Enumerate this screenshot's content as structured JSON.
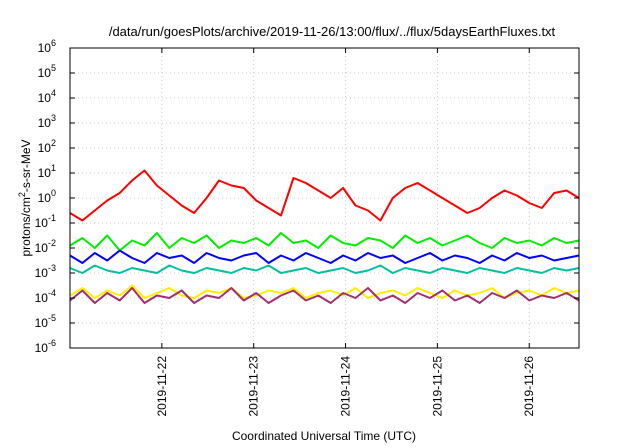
{
  "chart_data": {
    "type": "line",
    "title": "/data/run/goesPlots/archive/2019-11-26/13:00/flux/../flux/5daysEarthFluxes.txt",
    "xlabel": "Coordinated Universal Time (UTC)",
    "ylabel": "protons/cm²-s-sr-MeV",
    "ylabel_base": "protons/cm",
    "ylabel_sup": "2",
    "ylabel_rest": "-s-sr-MeV",
    "y_scale": "log",
    "ylim_exp": [
      -6,
      6
    ],
    "y_tick_exponents": [
      6,
      5,
      4,
      3,
      2,
      1,
      0,
      -1,
      -2,
      -3,
      -4,
      -5,
      -6
    ],
    "x_range_days": [
      "2019-11-21T00:00",
      "2019-11-26T13:00"
    ],
    "x_ticks": [
      "2019-11-22",
      "2019-11-23",
      "2019-11-24",
      "2019-11-25",
      "2019-11-26"
    ],
    "grid": true,
    "series": [
      {
        "color": "#ff0000",
        "log10_values": [
          -0.6,
          -0.9,
          -0.5,
          -0.1,
          0.2,
          0.7,
          1.1,
          0.5,
          0.1,
          -0.3,
          -0.6,
          0.0,
          0.7,
          0.5,
          0.4,
          -0.1,
          -0.4,
          -0.7,
          0.8,
          0.6,
          0.3,
          0.0,
          0.4,
          -0.3,
          -0.5,
          -0.9,
          0.0,
          0.4,
          0.6,
          0.3,
          0.0,
          -0.3,
          -0.6,
          -0.4,
          0.0,
          0.3,
          0.1,
          -0.2,
          -0.4,
          0.2,
          0.3,
          0.0
        ]
      },
      {
        "color": "#00ee00",
        "log10_values": [
          -1.9,
          -1.6,
          -2.0,
          -1.5,
          -2.1,
          -1.7,
          -1.9,
          -1.4,
          -2.0,
          -1.6,
          -1.8,
          -1.5,
          -2.0,
          -1.7,
          -1.8,
          -1.6,
          -1.9,
          -1.4,
          -1.8,
          -1.7,
          -2.0,
          -1.5,
          -1.8,
          -1.9,
          -1.6,
          -1.7,
          -2.0,
          -1.5,
          -1.8,
          -1.6,
          -1.9,
          -1.7,
          -1.5,
          -1.8,
          -2.0,
          -1.6,
          -1.8,
          -1.7,
          -1.9,
          -1.6,
          -1.8,
          -1.7
        ]
      },
      {
        "color": "#0000ff",
        "log10_values": [
          -2.3,
          -2.6,
          -2.2,
          -2.5,
          -2.1,
          -2.4,
          -2.6,
          -2.2,
          -2.4,
          -2.3,
          -2.6,
          -2.2,
          -2.4,
          -2.5,
          -2.3,
          -2.2,
          -2.6,
          -2.3,
          -2.5,
          -2.2,
          -2.4,
          -2.6,
          -2.3,
          -2.5,
          -2.2,
          -2.4,
          -2.3,
          -2.6,
          -2.4,
          -2.2,
          -2.5,
          -2.3,
          -2.4,
          -2.6,
          -2.3,
          -2.5,
          -2.2,
          -2.4,
          -2.3,
          -2.5,
          -2.4,
          -2.3
        ]
      },
      {
        "color": "#00c0a0",
        "log10_values": [
          -2.8,
          -3.0,
          -2.7,
          -2.9,
          -3.0,
          -2.8,
          -2.9,
          -3.0,
          -2.7,
          -2.9,
          -3.0,
          -2.8,
          -2.9,
          -3.0,
          -2.8,
          -2.9,
          -2.7,
          -3.0,
          -2.9,
          -2.8,
          -3.0,
          -2.9,
          -2.8,
          -3.0,
          -2.9,
          -2.7,
          -3.0,
          -2.8,
          -2.9,
          -3.0,
          -2.8,
          -2.9,
          -3.0,
          -2.8,
          -2.9,
          -3.0,
          -2.8,
          -2.9,
          -3.0,
          -2.8,
          -2.9,
          -2.8
        ]
      },
      {
        "color": "#ffee00",
        "log10_values": [
          -3.9,
          -3.6,
          -4.0,
          -3.7,
          -3.9,
          -3.5,
          -4.0,
          -3.8,
          -3.6,
          -3.9,
          -4.0,
          -3.7,
          -3.8,
          -3.6,
          -4.0,
          -3.9,
          -3.7,
          -3.8,
          -3.6,
          -4.0,
          -3.8,
          -3.7,
          -3.9,
          -3.6,
          -4.0,
          -3.8,
          -3.7,
          -3.9,
          -3.6,
          -3.8,
          -4.0,
          -3.7,
          -3.9,
          -3.8,
          -3.6,
          -4.0,
          -3.8,
          -3.7,
          -3.9,
          -3.6,
          -3.8,
          -3.7
        ]
      },
      {
        "color": "#a0306e",
        "log10_values": [
          -4.1,
          -3.7,
          -4.2,
          -3.8,
          -4.1,
          -3.6,
          -4.2,
          -3.9,
          -4.0,
          -3.7,
          -4.2,
          -3.9,
          -4.0,
          -3.6,
          -4.1,
          -3.8,
          -4.2,
          -3.9,
          -3.7,
          -4.1,
          -3.9,
          -4.2,
          -3.8,
          -4.0,
          -3.6,
          -4.1,
          -3.9,
          -4.2,
          -3.8,
          -4.0,
          -3.7,
          -4.1,
          -3.9,
          -4.2,
          -3.8,
          -4.0,
          -3.7,
          -4.1,
          -3.9,
          -4.0,
          -3.8,
          -4.1
        ]
      }
    ]
  }
}
